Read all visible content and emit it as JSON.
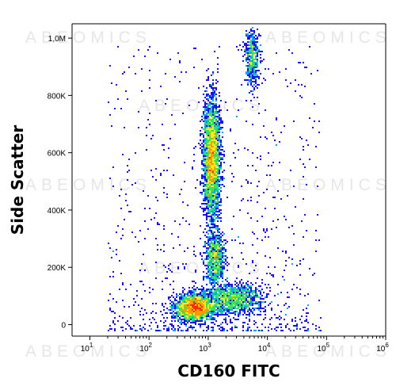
{
  "watermark": "ABEOMICS",
  "chart_data": {
    "type": "heatmap",
    "subtype": "flow-cytometry-density-dot-plot",
    "xlabel": "CD160 FITC",
    "ylabel": "Side Scatter",
    "x_scale": "log",
    "x_range": [
      5,
      1000000
    ],
    "y_range": [
      -40000,
      1050000
    ],
    "x_ticks": [
      {
        "value": 10,
        "label": "10",
        "exp": "1"
      },
      {
        "value": 100,
        "label": "10",
        "exp": "2"
      },
      {
        "value": 1000,
        "label": "10",
        "exp": "3"
      },
      {
        "value": 10000,
        "label": "10",
        "exp": "4"
      },
      {
        "value": 100000,
        "label": "10",
        "exp": "5"
      },
      {
        "value": 1000000,
        "label": "10",
        "exp": "6"
      }
    ],
    "y_ticks": [
      {
        "value": 0,
        "label": "0"
      },
      {
        "value": 200000,
        "label": "200K"
      },
      {
        "value": 400000,
        "label": "400K"
      },
      {
        "value": 600000,
        "label": "600K"
      },
      {
        "value": 800000,
        "label": "800K"
      },
      {
        "value": 1000000,
        "label": "1,0M"
      }
    ],
    "populations": [
      {
        "center_x": 600,
        "center_y": 60000,
        "log_x_sd": 0.16,
        "y_sd": 22000,
        "count": 2600,
        "density": "high"
      },
      {
        "center_x": 1150,
        "center_y": 580000,
        "log_x_sd": 0.07,
        "y_sd": 100000,
        "count": 3200,
        "density": "high"
      },
      {
        "center_x": 1300,
        "center_y": 230000,
        "log_x_sd": 0.08,
        "y_sd": 45000,
        "count": 900,
        "density": "medium"
      },
      {
        "center_x": 2500,
        "center_y": 90000,
        "log_x_sd": 0.25,
        "y_sd": 25000,
        "count": 1400,
        "density": "medium"
      },
      {
        "center_x": 5500,
        "center_y": 930000,
        "log_x_sd": 0.06,
        "y_sd": 50000,
        "count": 500,
        "density": "low"
      }
    ],
    "color_scale": [
      "#1a0dff",
      "#00a6ff",
      "#2ee65a",
      "#f2ee1c",
      "#ff9a00",
      "#ff2a00"
    ],
    "grid": false
  }
}
